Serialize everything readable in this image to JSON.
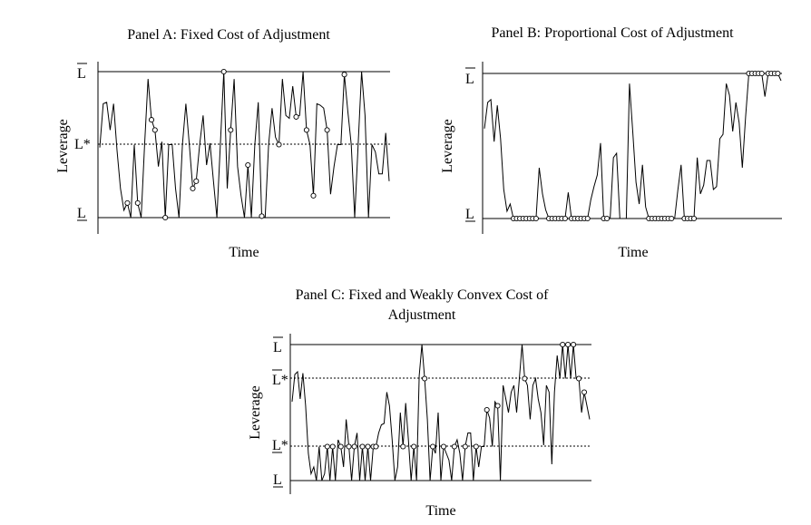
{
  "chart_data": [
    {
      "type": "line",
      "title": "Panel A: Fixed Cost of Adjustment",
      "xlabel": "Time",
      "ylabel": "Leverage",
      "ytick_labels": {
        "upper": "L",
        "target": "L*",
        "lower": "L"
      },
      "ylim": [
        0,
        1
      ],
      "bounds": {
        "lower": 0,
        "target": 0.5,
        "upper": 1
      },
      "y": [
        0.48,
        0.78,
        0.79,
        0.6,
        0.78,
        0.46,
        0.2,
        0.05,
        0.1,
        0.0,
        0.5,
        0.1,
        0.0,
        0.5,
        0.95,
        0.67,
        0.6,
        0.35,
        0.52,
        0.0,
        0.5,
        0.5,
        0.2,
        0.0,
        0.5,
        0.78,
        0.5,
        0.2,
        0.25,
        0.5,
        0.7,
        0.36,
        0.51,
        0.25,
        0.0,
        0.5,
        1.0,
        0.2,
        0.6,
        0.95,
        0.35,
        0.15,
        0.0,
        0.36,
        0.0,
        0.5,
        0.79,
        0.01,
        0.0,
        0.5,
        0.75,
        0.55,
        0.5,
        0.95,
        0.7,
        0.68,
        0.9,
        0.69,
        0.7,
        1.0,
        0.6,
        0.5,
        0.15,
        0.78,
        0.77,
        0.75,
        0.6,
        0.16,
        0.35,
        0.5,
        0.5,
        0.98,
        0.73,
        0.5,
        0.0,
        0.5,
        1.0,
        0.7,
        0.0,
        0.5,
        0.45,
        0.3,
        0.3,
        0.58,
        0.25
      ],
      "markers": [
        8,
        11,
        15,
        16,
        19,
        27,
        28,
        36,
        38,
        43,
        47,
        52,
        57,
        60,
        62,
        66,
        71
      ]
    },
    {
      "type": "line",
      "title": "Panel B: Proportional Cost of Adjustment",
      "xlabel": "Time",
      "ylabel": "Leverage",
      "ytick_labels": {
        "upper": "L",
        "lower": "L"
      },
      "ylim": [
        0,
        1
      ],
      "bounds": {
        "lower": 0,
        "upper": 1
      },
      "y": [
        0.62,
        0.8,
        0.82,
        0.53,
        0.78,
        0.55,
        0.2,
        0.05,
        0.1,
        0.0,
        0.0,
        0.0,
        0.0,
        0.0,
        0.0,
        0.0,
        0.0,
        0.35,
        0.17,
        0.06,
        0.0,
        0.0,
        0.0,
        0.0,
        0.0,
        0.0,
        0.18,
        0.0,
        0.0,
        0.0,
        0.0,
        0.0,
        0.0,
        0.13,
        0.22,
        0.3,
        0.52,
        0.0,
        0.0,
        0.0,
        0.42,
        0.45,
        0.0,
        0.0,
        0.0,
        0.93,
        0.6,
        0.25,
        0.1,
        0.37,
        0.08,
        0.0,
        0.0,
        0.0,
        0.0,
        0.0,
        0.0,
        0.0,
        0.0,
        0.0,
        0.2,
        0.37,
        0.0,
        0.0,
        0.0,
        0.0,
        0.42,
        0.17,
        0.23,
        0.4,
        0.4,
        0.2,
        0.22,
        0.55,
        0.58,
        0.93,
        0.85,
        0.6,
        0.8,
        0.66,
        0.35,
        0.7,
        1.0,
        1.0,
        1.0,
        1.0,
        1.0,
        0.84,
        1.0,
        1.0,
        1.0,
        1.0,
        0.95
      ],
      "markers": [
        9,
        10,
        11,
        12,
        13,
        14,
        15,
        16,
        20,
        21,
        22,
        23,
        24,
        25,
        27,
        28,
        29,
        30,
        31,
        32,
        37,
        38,
        51,
        52,
        53,
        54,
        55,
        56,
        57,
        58,
        62,
        63,
        64,
        65,
        82,
        83,
        84,
        85,
        86,
        88,
        89,
        90,
        91
      ]
    },
    {
      "type": "line",
      "title": "Panel C: Fixed and Weakly Convex Cost of Adjustment",
      "xlabel": "Time",
      "ylabel": "Leverage",
      "ytick_labels": {
        "upper": "L",
        "upper_target": "L*",
        "lower_target": "L*",
        "lower": "L"
      },
      "ylim": [
        0,
        1
      ],
      "bounds": {
        "lower": 0,
        "lower_target": 0.25,
        "upper_target": 0.75,
        "upper": 1
      },
      "y": [
        0.58,
        0.78,
        0.8,
        0.6,
        0.79,
        0.55,
        0.2,
        0.05,
        0.1,
        0.0,
        0.25,
        0.0,
        0.05,
        0.25,
        0.0,
        0.25,
        0.0,
        0.3,
        0.25,
        0.1,
        0.45,
        0.25,
        0.0,
        0.25,
        0.35,
        0.0,
        0.25,
        0.0,
        0.25,
        0.0,
        0.25,
        0.25,
        0.35,
        0.41,
        0.42,
        0.65,
        0.55,
        0.3,
        0.0,
        0.1,
        0.5,
        0.25,
        0.57,
        0.3,
        0.0,
        0.25,
        0.0,
        0.77,
        1.0,
        0.75,
        0.45,
        0.0,
        0.25,
        0.2,
        0.5,
        0.0,
        0.25,
        0.2,
        0.15,
        0.0,
        0.25,
        0.3,
        0.2,
        0.0,
        0.25,
        0.35,
        0.35,
        0.0,
        0.25,
        0.1,
        0.25,
        0.25,
        0.52,
        0.46,
        0.25,
        0.58,
        0.55,
        0.0,
        0.7,
        0.6,
        0.5,
        0.65,
        0.7,
        0.5,
        0.75,
        1.0,
        0.75,
        0.7,
        0.45,
        0.7,
        0.75,
        0.6,
        0.5,
        0.26,
        0.7,
        0.65,
        0.12,
        0.65,
        0.92,
        0.75,
        1.0,
        0.75,
        1.0,
        0.75,
        1.0,
        0.75,
        0.75,
        0.5,
        0.65,
        0.55,
        0.45
      ],
      "markers": [
        13,
        15,
        18,
        21,
        23,
        26,
        28,
        30,
        31,
        41,
        45,
        49,
        52,
        56,
        60,
        64,
        68,
        72,
        76,
        86,
        100,
        102,
        104,
        106,
        108
      ]
    }
  ]
}
